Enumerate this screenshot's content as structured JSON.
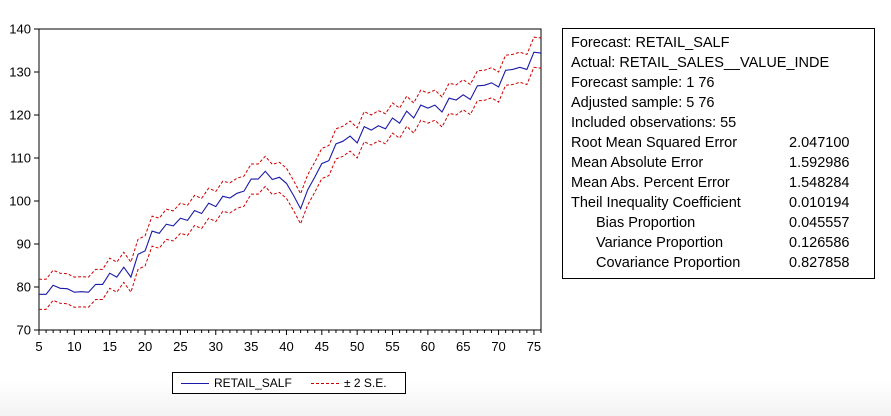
{
  "chart_data": {
    "type": "line",
    "title": "",
    "xlabel": "",
    "ylabel": "",
    "xlim": [
      5,
      76
    ],
    "ylim": [
      70,
      140
    ],
    "x_ticks": [
      5,
      10,
      15,
      20,
      25,
      30,
      35,
      40,
      45,
      50,
      55,
      60,
      65,
      70,
      75
    ],
    "y_ticks": [
      70,
      80,
      90,
      100,
      110,
      120,
      130,
      140
    ],
    "grid": false,
    "legend_position": "bottom",
    "x": [
      5,
      6,
      7,
      8,
      9,
      10,
      11,
      12,
      13,
      14,
      15,
      16,
      17,
      18,
      19,
      20,
      21,
      22,
      23,
      24,
      25,
      26,
      27,
      28,
      29,
      30,
      31,
      32,
      33,
      34,
      35,
      36,
      37,
      38,
      39,
      40,
      41,
      42,
      43,
      44,
      45,
      46,
      47,
      48,
      49,
      50,
      51,
      52,
      53,
      54,
      55,
      56,
      57,
      58,
      59,
      60,
      61,
      62,
      63,
      64,
      65,
      66,
      67,
      68,
      69,
      70,
      71,
      72,
      73,
      74,
      75,
      76
    ],
    "series": [
      {
        "name": "RETAIL_SALF",
        "color": "#1a1aa6",
        "style": "solid",
        "values": [
          78.3,
          78.3,
          80.4,
          79.7,
          79.6,
          78.8,
          78.9,
          78.8,
          80.6,
          80.6,
          83.2,
          82.3,
          84.6,
          82.3,
          87.6,
          88.4,
          93.0,
          92.5,
          94.6,
          94.2,
          96.0,
          95.5,
          97.8,
          97.1,
          99.5,
          98.7,
          101.1,
          100.7,
          101.8,
          102.3,
          105.1,
          105.1,
          106.9,
          105.0,
          105.5,
          104.1,
          101.3,
          98.2,
          102.6,
          105.5,
          108.7,
          109.4,
          113.3,
          113.9,
          115.1,
          113.5,
          117.3,
          116.5,
          117.5,
          116.8,
          119.3,
          118.1,
          120.9,
          119.3,
          122.3,
          121.6,
          122.3,
          120.7,
          123.9,
          123.5,
          124.7,
          123.6,
          126.8,
          126.9,
          127.5,
          126.5,
          130.4,
          130.6,
          131.1,
          130.6,
          134.6,
          134.4
        ]
      },
      {
        "name": "± 2 S.E.",
        "color": "#cc0000",
        "style": "dashed",
        "upper": [
          81.8,
          81.8,
          83.9,
          83.2,
          83.1,
          82.3,
          82.4,
          82.3,
          84.1,
          84.1,
          86.7,
          85.8,
          88.1,
          85.8,
          91.1,
          91.9,
          96.5,
          96.0,
          98.1,
          97.7,
          99.5,
          99.0,
          101.3,
          100.6,
          103.0,
          102.2,
          104.6,
          104.2,
          105.3,
          105.8,
          108.6,
          108.6,
          110.4,
          108.5,
          109.0,
          107.6,
          104.8,
          101.7,
          106.1,
          109.0,
          112.2,
          112.9,
          116.8,
          117.4,
          118.6,
          117.0,
          120.8,
          120.0,
          121.0,
          120.3,
          122.8,
          121.6,
          124.4,
          122.8,
          125.8,
          125.1,
          125.8,
          124.2,
          127.4,
          127.0,
          128.2,
          127.1,
          130.3,
          130.4,
          131.0,
          130.0,
          133.9,
          134.1,
          134.6,
          134.1,
          138.1,
          137.9
        ],
        "lower": [
          74.8,
          74.8,
          76.9,
          76.2,
          76.1,
          75.3,
          75.4,
          75.3,
          77.1,
          77.1,
          79.7,
          78.8,
          81.1,
          78.8,
          84.1,
          84.9,
          89.5,
          89.0,
          91.1,
          90.7,
          92.5,
          92.0,
          94.3,
          93.6,
          96.0,
          95.2,
          97.6,
          97.2,
          98.3,
          98.8,
          101.6,
          101.6,
          103.4,
          101.5,
          102.0,
          100.6,
          97.8,
          94.7,
          99.1,
          102.0,
          105.2,
          105.9,
          109.8,
          110.4,
          111.6,
          110.0,
          113.8,
          113.0,
          114.0,
          113.3,
          115.8,
          114.6,
          117.4,
          115.8,
          118.8,
          118.1,
          118.8,
          117.2,
          120.4,
          120.0,
          121.2,
          120.1,
          123.3,
          123.4,
          124.0,
          123.0,
          126.9,
          127.1,
          127.6,
          127.1,
          131.1,
          130.9
        ]
      }
    ]
  },
  "legend": {
    "items": [
      {
        "label": "RETAIL_SALF",
        "color": "#1a1aa6",
        "style": "solid"
      },
      {
        "label": "± 2 S.E.",
        "color": "#cc0000",
        "style": "dashed"
      }
    ]
  },
  "stats": {
    "forecast": "Forecast: RETAIL_SALF",
    "actual": "Actual: RETAIL_SALES__VALUE_INDE",
    "forecast_sample": "Forecast sample: 1 76",
    "adjusted_sample": "Adjusted sample: 5 76",
    "included_observations": "Included observations: 55",
    "rows": [
      {
        "label": "Root Mean Squared Error",
        "value": "2.047100",
        "indent": false
      },
      {
        "label": "Mean Absolute Error",
        "value": "1.592986",
        "indent": false
      },
      {
        "label": "Mean Abs. Percent Error",
        "value": "1.548284",
        "indent": false
      },
      {
        "label": "Theil Inequality Coefficient",
        "value": "0.010194",
        "indent": false
      },
      {
        "label": "Bias Proportion",
        "value": "0.045557",
        "indent": true
      },
      {
        "label": "Variance Proportion",
        "value": "0.126586",
        "indent": true
      },
      {
        "label": "Covariance Proportion",
        "value": "0.827858",
        "indent": true
      }
    ]
  }
}
